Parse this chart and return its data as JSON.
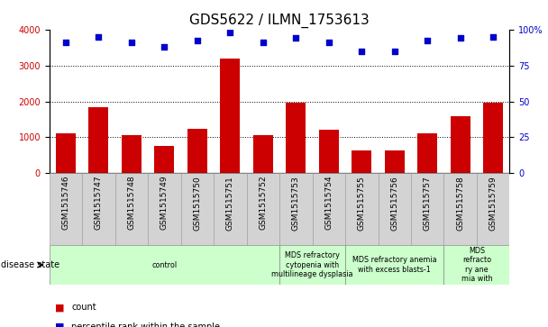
{
  "title": "GDS5622 / ILMN_1753613",
  "samples": [
    "GSM1515746",
    "GSM1515747",
    "GSM1515748",
    "GSM1515749",
    "GSM1515750",
    "GSM1515751",
    "GSM1515752",
    "GSM1515753",
    "GSM1515754",
    "GSM1515755",
    "GSM1515756",
    "GSM1515757",
    "GSM1515758",
    "GSM1515759"
  ],
  "counts": [
    1100,
    1850,
    1050,
    750,
    1230,
    3180,
    1060,
    1970,
    1210,
    630,
    640,
    1120,
    1600,
    1960
  ],
  "percentile_ranks": [
    91,
    95,
    91,
    88,
    92,
    98,
    91,
    94,
    91,
    85,
    85,
    92,
    94,
    95
  ],
  "bar_color": "#cc0000",
  "dot_color": "#0000cc",
  "ylim_left": [
    0,
    4000
  ],
  "ylim_right": [
    0,
    100
  ],
  "yticks_left": [
    0,
    1000,
    2000,
    3000,
    4000
  ],
  "yticks_right": [
    0,
    25,
    50,
    75,
    100
  ],
  "ytick_labels_right": [
    "0",
    "25",
    "50",
    "75",
    "100%"
  ],
  "disease_groups": [
    {
      "label": "control",
      "start": 0,
      "end": 7
    },
    {
      "label": "MDS refractory\ncytopenia with\nmultilineage dysplasia",
      "start": 7,
      "end": 9
    },
    {
      "label": "MDS refractory anemia\nwith excess blasts-1",
      "start": 9,
      "end": 12
    },
    {
      "label": "MDS\nrefracto\nry ane\nmia with",
      "start": 12,
      "end": 14
    }
  ],
  "disease_bg_color": "#ccffcc",
  "tick_bg_color": "#d3d3d3",
  "legend_count_color": "#cc0000",
  "legend_dot_color": "#0000cc",
  "title_fontsize": 11,
  "axis_label_fontsize": 7,
  "tick_label_fontsize": 6.5,
  "disease_label_fontsize": 5.8,
  "disease_state_label": "disease state",
  "legend_count_label": "count",
  "legend_percentile_label": "percentile rank within the sample"
}
